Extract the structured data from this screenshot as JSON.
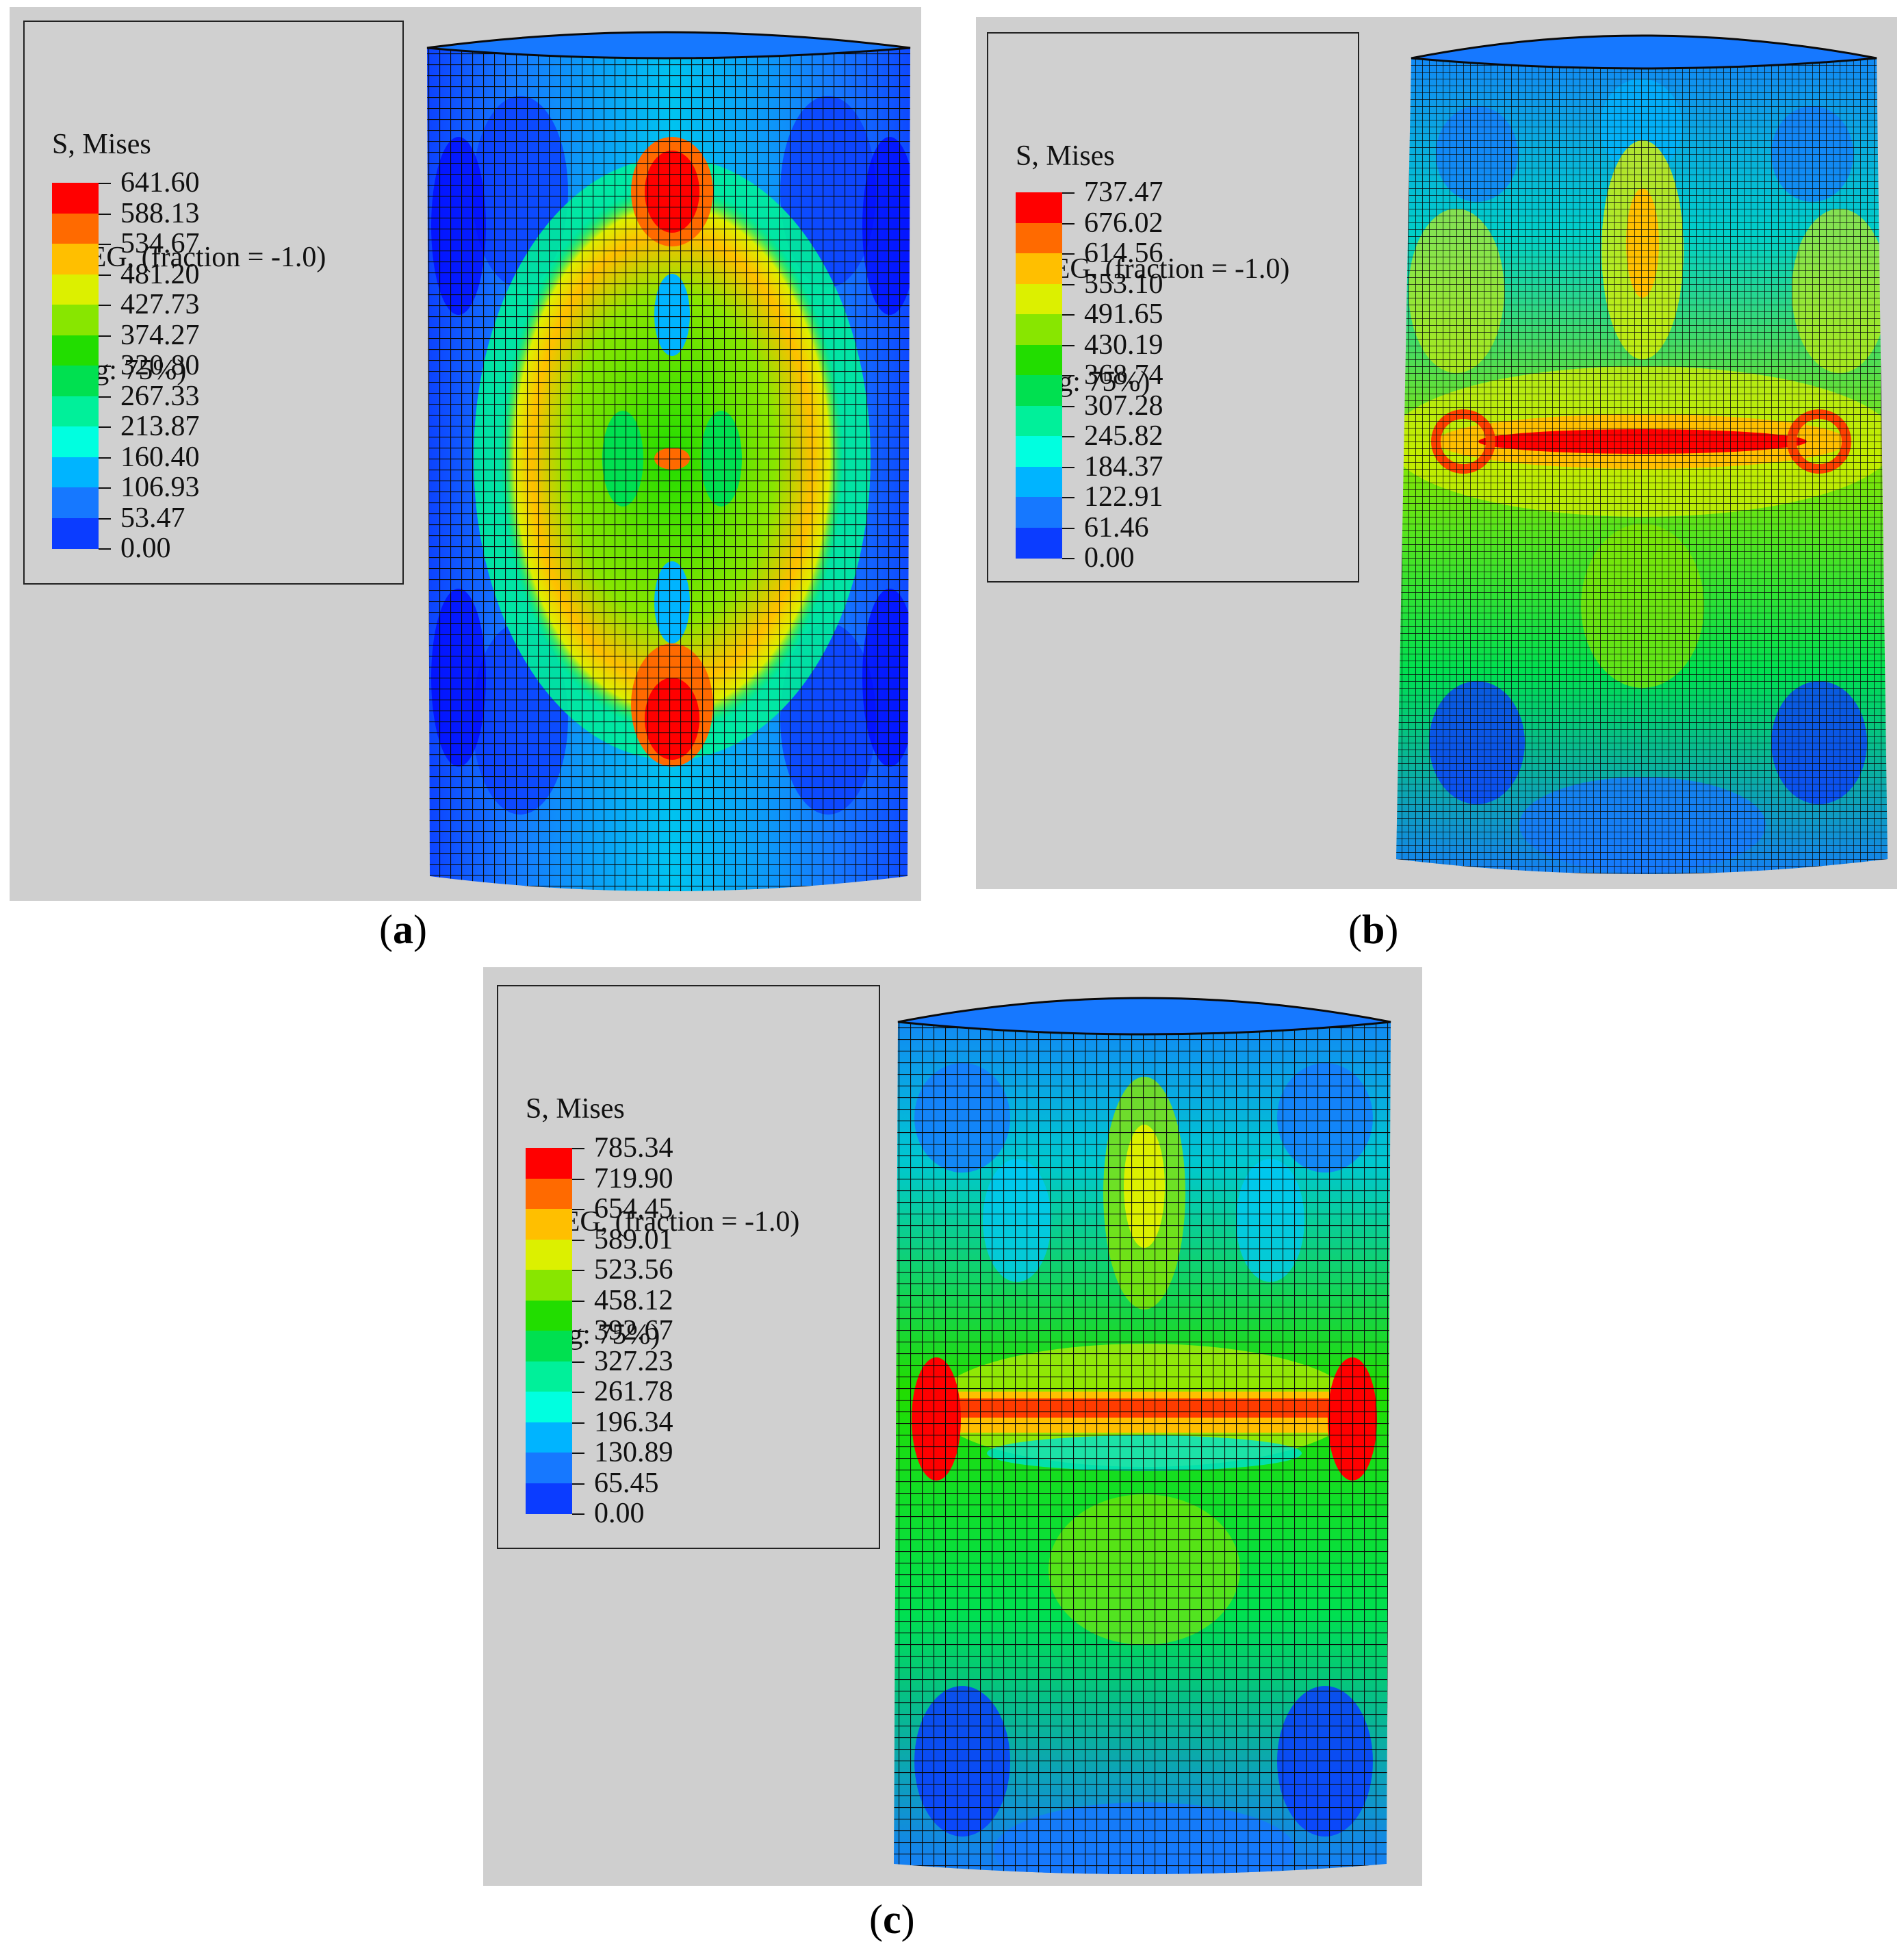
{
  "legend_header": [
    "S, Mises",
    "SNEG, (fraction = -1.0)",
    "(Avg: 75%)"
  ],
  "colorbar_colors": [
    "#0000ff",
    "#0b3cff",
    "#1678ff",
    "#00b4ff",
    "#00ffe0",
    "#00f09a",
    "#00e050",
    "#22dd00",
    "#88e600",
    "#dcf000",
    "#ffbf00",
    "#ff6a00",
    "#ff0000"
  ],
  "panels": [
    {
      "id": "a",
      "caption": "a",
      "ticks": [
        "641.60",
        "588.13",
        "534.67",
        "481.20",
        "427.73",
        "374.27",
        "320.80",
        "267.33",
        "213.87",
        "160.40",
        "106.93",
        "53.47",
        "0.00"
      ],
      "stress_pattern": "central elliptical high-stress region, red spots at top and bottom of vertical axis"
    },
    {
      "id": "b",
      "caption": "b",
      "ticks": [
        "737.47",
        "676.02",
        "614.56",
        "553.10",
        "491.65",
        "430.19",
        "368.74",
        "307.28",
        "245.82",
        "184.37",
        "122.91",
        "61.46",
        "0.00"
      ],
      "stress_pattern": "horizontal band of high stress at mid-height with small rings at both ends"
    },
    {
      "id": "c",
      "caption": "c",
      "ticks": [
        "785.34",
        "719.90",
        "654.45",
        "589.01",
        "523.56",
        "458.12",
        "392.67",
        "327.23",
        "261.78",
        "196.34",
        "130.89",
        "65.45",
        "0.00"
      ],
      "stress_pattern": "horizontal high-stress crack band with curved red end zones"
    }
  ]
}
